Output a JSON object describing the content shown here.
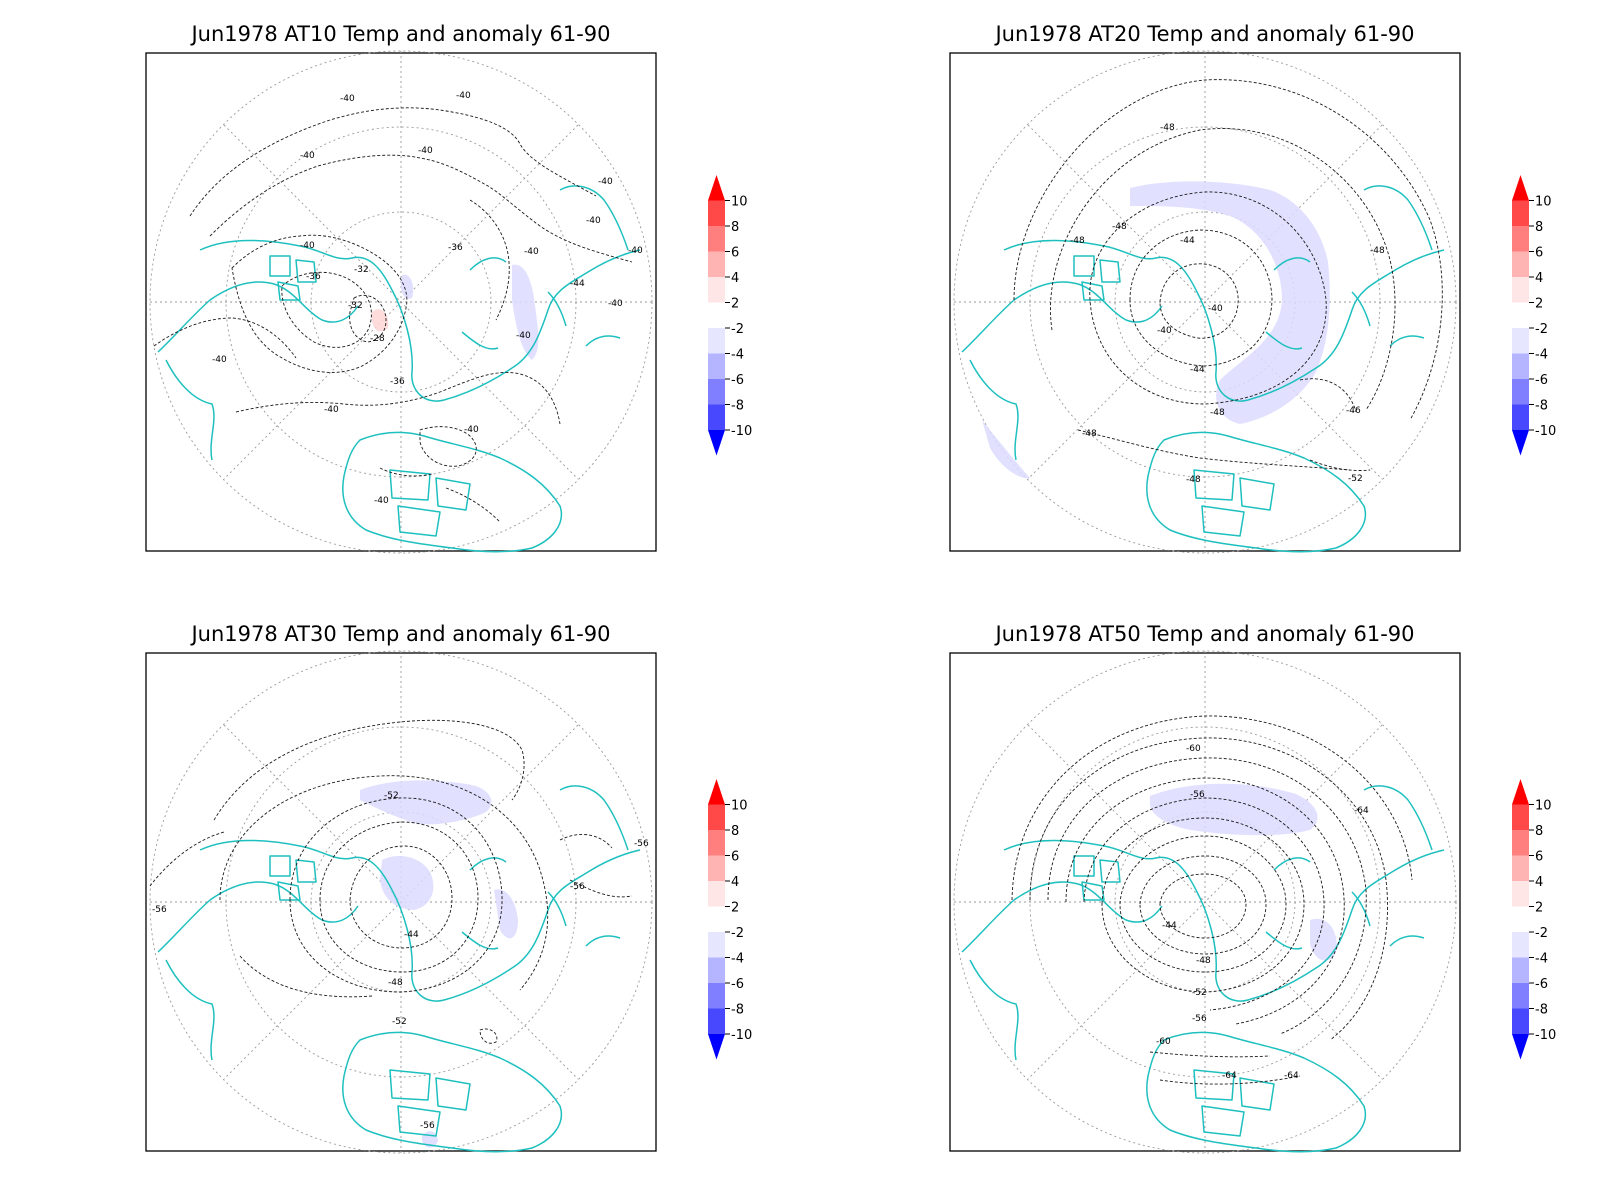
{
  "colors": {
    "coastline": "#1ec0bf",
    "contour": "#1a1a1a",
    "grid": "#9a9a9a",
    "anomaly_negative_shade": "#dcdcff",
    "anomaly_positive_shade": "#ffd6d6"
  },
  "colorbar": {
    "labels": [
      "10",
      "8",
      "6",
      "4",
      "2",
      "-2",
      "-4",
      "-6",
      "-8",
      "-10"
    ],
    "colors": [
      "#ff0000",
      "#ff4848",
      "#ff7f7f",
      "#ffb4b4",
      "#ffe6e6",
      "#ffffff",
      "#e6e6ff",
      "#b4b4ff",
      "#7f7fff",
      "#4848ff",
      "#0000ff"
    ]
  },
  "panels": [
    {
      "title": "Jun1978 AT10 Temp and anomaly 61-90",
      "contour_labels": [
        "-40",
        "-40",
        "-40",
        "-40",
        "-40",
        "-40",
        "-36",
        "-36",
        "-32",
        "-32",
        "-28",
        "-36",
        "-40",
        "-40",
        "-40",
        "-40",
        "-44",
        "-40",
        "-40",
        "-40",
        "-40",
        "-40"
      ]
    },
    {
      "title": "Jun1978 AT20 Temp and anomaly 61-90",
      "contour_labels": [
        "-48",
        "-48",
        "-48",
        "-44",
        "-40",
        "-40",
        "-44",
        "-48",
        "-48",
        "-48",
        "-48",
        "-46",
        "-52"
      ]
    },
    {
      "title": "Jun1978 AT30 Temp and anomaly 61-90",
      "contour_labels": [
        "-52",
        "-56",
        "-56",
        "-56",
        "-44",
        "-48",
        "-52",
        "-56"
      ]
    },
    {
      "title": "Jun1978 AT50 Temp and anomaly 61-90",
      "contour_labels": [
        "-60",
        "-56",
        "-64",
        "-44",
        "-48",
        "-52",
        "-56",
        "-60",
        "-64",
        "-64"
      ]
    }
  ]
}
